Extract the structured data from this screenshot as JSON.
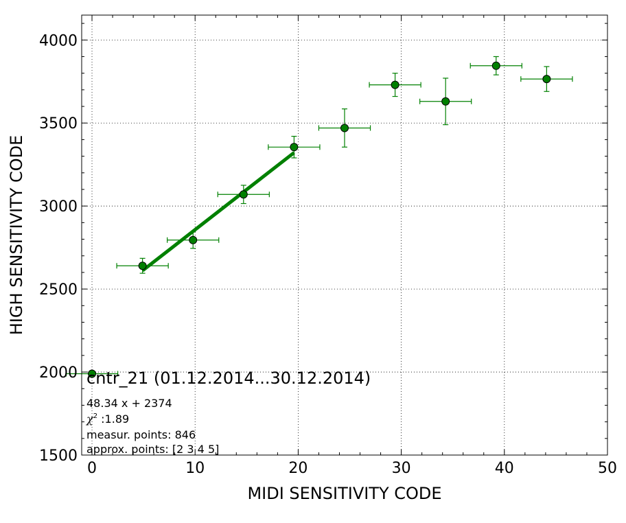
{
  "chart_data": {
    "type": "scatter",
    "xlabel": "MIDI SENSITIVITY CODE",
    "ylabel": "HIGH SENSITIVITY CODE",
    "xlim": [
      -1,
      50
    ],
    "ylim": [
      1500,
      4150
    ],
    "xticks": [
      0,
      10,
      20,
      30,
      40,
      50
    ],
    "yticks": [
      1500,
      2000,
      2500,
      3000,
      3500,
      4000
    ],
    "grid": true,
    "colors": {
      "marker": "#007f00",
      "errorbar": "#008000",
      "fit": "#008000",
      "marker_edge": "#000000"
    },
    "series": [
      {
        "points": [
          {
            "x": 0.0,
            "y": 1990,
            "xerr": 2.5,
            "yerr": 0
          },
          {
            "x": 4.9,
            "y": 2640,
            "xerr": 2.5,
            "yerr": 45
          },
          {
            "x": 9.8,
            "y": 2795,
            "xerr": 2.5,
            "yerr": 50
          },
          {
            "x": 14.7,
            "y": 3070,
            "xerr": 2.5,
            "yerr": 55
          },
          {
            "x": 19.6,
            "y": 3355,
            "xerr": 2.5,
            "yerr": 65
          },
          {
            "x": 24.5,
            "y": 3470,
            "xerr": 2.5,
            "yerr": 115
          },
          {
            "x": 29.4,
            "y": 3730,
            "xerr": 2.5,
            "yerr": 70
          },
          {
            "x": 34.3,
            "y": 3630,
            "xerr": 2.5,
            "yerr": 140
          },
          {
            "x": 39.2,
            "y": 3845,
            "xerr": 2.5,
            "yerr": 55
          },
          {
            "x": 44.1,
            "y": 3765,
            "xerr": 2.5,
            "yerr": 75
          }
        ]
      }
    ],
    "fit_line": {
      "slope": 48.34,
      "intercept": 2374,
      "x_range": [
        4.9,
        19.6
      ]
    },
    "annotation": {
      "title": "cntr_21 (01.12.2014...30.12.2014)",
      "equation": "48.34 x + 2374",
      "chi_label": "χ",
      "chi_sup": "2",
      "chi_value": " :1.89",
      "measur_points": "measur. points: 846",
      "approx_points": "approx. points: [2 3 4 5]"
    }
  }
}
